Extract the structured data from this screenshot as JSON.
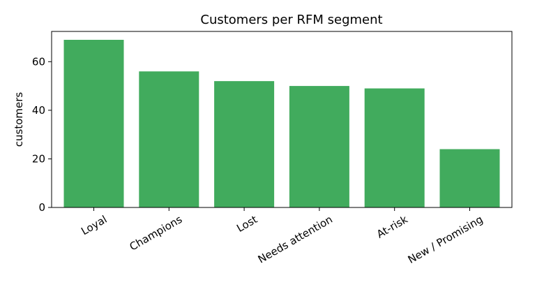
{
  "chart_data": {
    "type": "bar",
    "title": "Customers per RFM segment",
    "y_label": "customers",
    "categories": [
      "Loyal",
      "Champions",
      "Lost",
      "Needs attention",
      "At-risk",
      "New / Promising"
    ],
    "values": [
      69,
      56,
      52,
      50,
      49,
      24
    ],
    "color": "#41ab5d",
    "ylim": [
      0,
      72.45
    ],
    "yticks": [
      0,
      20,
      40,
      60
    ],
    "grid": false
  }
}
